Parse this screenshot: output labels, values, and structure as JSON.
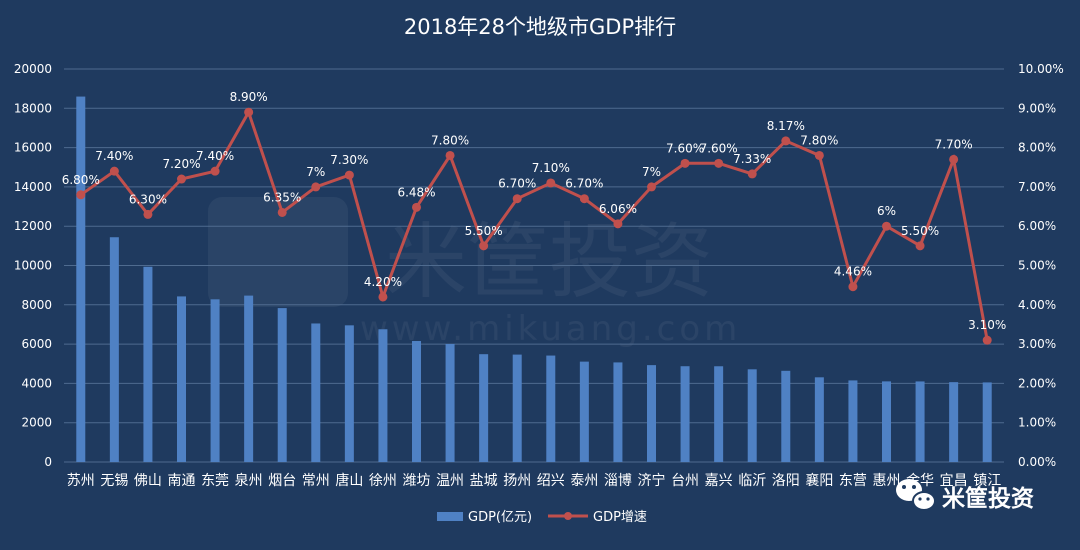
{
  "chart_data": {
    "type": "bar",
    "title": "2018年28个地级市GDP排行",
    "categories": [
      "苏州",
      "无锡",
      "佛山",
      "南通",
      "东莞",
      "泉州",
      "烟台",
      "常州",
      "唐山",
      "徐州",
      "潍坊",
      "温州",
      "盐城",
      "扬州",
      "绍兴",
      "泰州",
      "淄博",
      "济宁",
      "台州",
      "嘉兴",
      "临沂",
      "洛阳",
      "襄阳",
      "东营",
      "惠州",
      "金华",
      "宜昌",
      "镇江"
    ],
    "series": [
      {
        "name": "GDP(亿元)",
        "type": "bar",
        "axis": "left",
        "values": [
          18597,
          11438,
          9935,
          8427,
          8279,
          8468,
          7832,
          7050,
          6955,
          6755,
          6157,
          6006,
          5487,
          5466,
          5417,
          5108,
          5068,
          4930,
          4874,
          4872,
          4717,
          4641,
          4310,
          4152,
          4103,
          4100,
          4064,
          4050
        ]
      },
      {
        "name": "GDP增速",
        "type": "line",
        "axis": "right",
        "values": [
          6.8,
          7.4,
          6.3,
          7.2,
          7.4,
          8.9,
          6.35,
          7.0,
          7.3,
          4.2,
          6.48,
          7.8,
          5.5,
          6.7,
          7.1,
          6.7,
          6.06,
          7.0,
          7.6,
          7.6,
          7.33,
          8.17,
          7.8,
          4.46,
          6.0,
          5.5,
          7.7,
          3.1
        ],
        "labels": [
          "6.80%",
          "7.40%",
          "6.30%",
          "7.20%",
          "7.40%",
          "8.90%",
          "6.35%",
          "7%",
          "7.30%",
          "4.20%",
          "6.48%",
          "7.80%",
          "5.50%",
          "6.70%",
          "7.10%",
          "6.70%",
          "6.06%",
          "7%",
          "7.60%",
          "7.60%",
          "7.33%",
          "8.17%",
          "7.80%",
          "4.46%",
          "6%",
          "5.50%",
          "7.70%",
          "3.10%"
        ]
      }
    ],
    "ylim_left": [
      0,
      20000
    ],
    "yticks_left": [
      "0",
      "2000",
      "4000",
      "6000",
      "8000",
      "10000",
      "12000",
      "14000",
      "16000",
      "18000",
      "20000"
    ],
    "ylim_right": [
      0,
      10
    ],
    "yticks_right": [
      "0.00%",
      "1.00%",
      "2.00%",
      "3.00%",
      "4.00%",
      "5.00%",
      "6.00%",
      "7.00%",
      "8.00%",
      "9.00%",
      "10.00%"
    ],
    "grid": true,
    "legend_position": "bottom"
  },
  "colors": {
    "background": "#1f3a5f",
    "bar": "#4f81c4",
    "line": "#c0504d",
    "grid": "#4f6b8f",
    "text": "#ffffff"
  },
  "watermark": {
    "text": "米筐投资",
    "url_text": "www.mikuang.com"
  },
  "brand": {
    "name": "米筐投资",
    "icon": "wechat-icon"
  }
}
